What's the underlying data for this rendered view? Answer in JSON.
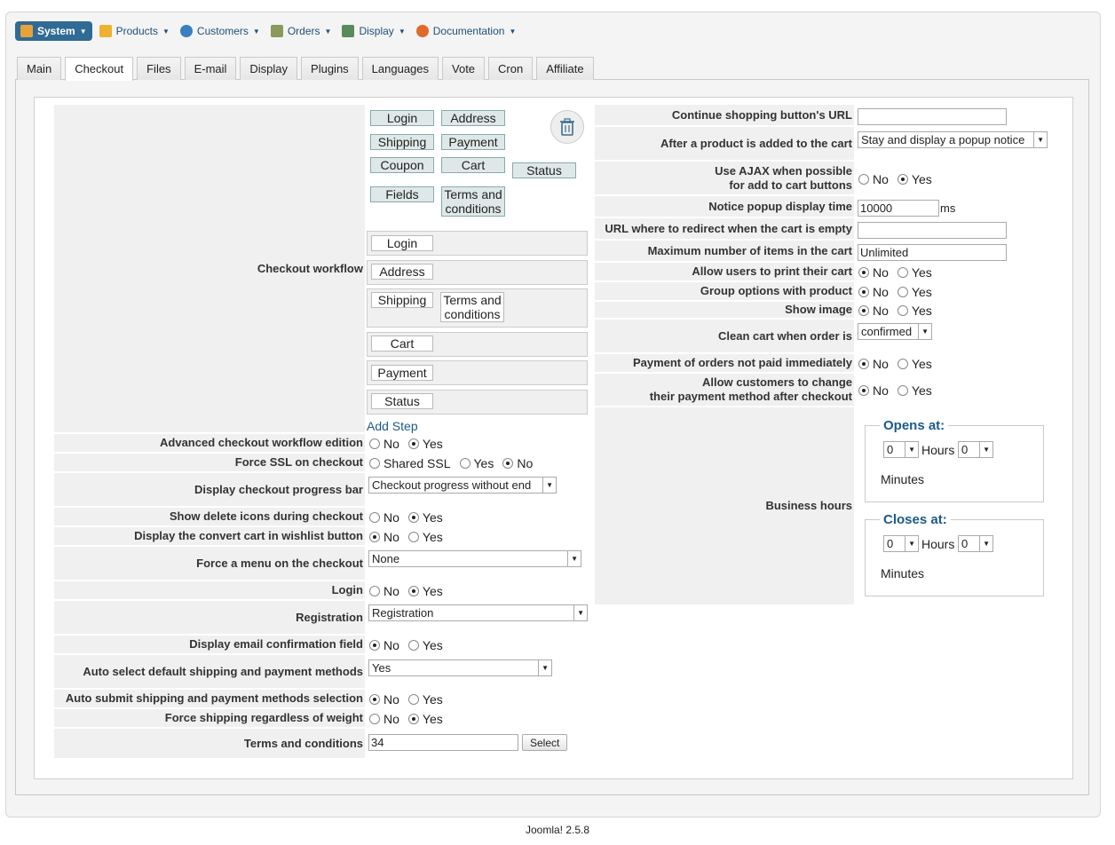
{
  "menubar": [
    {
      "label": "System",
      "icon": "wrench-icon",
      "color": "#e8a23a"
    },
    {
      "label": "Products",
      "icon": "products-icon",
      "color": "#f0b030"
    },
    {
      "label": "Customers",
      "icon": "customers-icon",
      "color": "#3a7fc0"
    },
    {
      "label": "Orders",
      "icon": "orders-icon",
      "color": "#8a9a5a"
    },
    {
      "label": "Display",
      "icon": "display-icon",
      "color": "#5a8a5a"
    },
    {
      "label": "Documentation",
      "icon": "lifebuoy-icon",
      "color": "#e06a2a"
    }
  ],
  "tabs": [
    "Main",
    "Checkout",
    "Files",
    "E-mail",
    "Display",
    "Plugins",
    "Languages",
    "Vote",
    "Cron",
    "Affiliate"
  ],
  "active_tab": "Checkout",
  "workflow": {
    "label": "Checkout workflow",
    "palette": [
      "Login",
      "Address",
      "Shipping",
      "Payment",
      "Coupon",
      "Cart",
      "Status",
      "Fields",
      "Terms and conditions"
    ],
    "steps": [
      [
        "Login"
      ],
      [
        "Address"
      ],
      [
        "Shipping",
        "Terms and conditions"
      ],
      [
        "Cart"
      ],
      [
        "Payment"
      ],
      [
        "Status"
      ]
    ],
    "add_step": "Add Step"
  },
  "left": {
    "advanced": {
      "label": "Advanced checkout workflow edition",
      "no": "No",
      "yes": "Yes"
    },
    "ssl": {
      "label": "Force SSL on checkout",
      "shared": "Shared SSL",
      "yes": "Yes",
      "no": "No"
    },
    "progress": {
      "label": "Display checkout progress bar",
      "value": "Checkout progress without end"
    },
    "delete_icons": {
      "label": "Show delete icons during checkout",
      "no": "No",
      "yes": "Yes"
    },
    "wishlist": {
      "label": "Display the convert cart in wishlist button",
      "no": "No",
      "yes": "Yes"
    },
    "menu": {
      "label": "Force a menu on the checkout",
      "value": "None"
    },
    "login": {
      "label": "Login",
      "no": "No",
      "yes": "Yes"
    },
    "registration": {
      "label": "Registration",
      "value": "Registration"
    },
    "email_confirm": {
      "label": "Display email confirmation field",
      "no": "No",
      "yes": "Yes"
    },
    "auto_select": {
      "label": "Auto select default shipping and payment methods",
      "value": "Yes"
    },
    "auto_submit": {
      "label": "Auto submit shipping and payment methods selection",
      "no": "No",
      "yes": "Yes"
    },
    "force_shipping": {
      "label": "Force shipping regardless of weight",
      "no": "No",
      "yes": "Yes"
    },
    "terms": {
      "label": "Terms and conditions",
      "value": "34",
      "button": "Select"
    }
  },
  "right": {
    "continue_url": {
      "label": "Continue shopping button's URL",
      "value": ""
    },
    "after_add": {
      "label": "After a product is added to the cart",
      "value": "Stay and display a popup notice"
    },
    "ajax": {
      "label1": "Use AJAX when possible",
      "label2": "for add to cart buttons",
      "no": "No",
      "yes": "Yes"
    },
    "popup_time": {
      "label": "Notice popup display time",
      "value": "10000",
      "unit": "ms"
    },
    "redirect_empty": {
      "label": "URL where to redirect when the cart is empty",
      "value": ""
    },
    "max_items": {
      "label": "Maximum number of items in the cart",
      "value": "Unlimited"
    },
    "print_cart": {
      "label": "Allow users to print their cart",
      "no": "No",
      "yes": "Yes"
    },
    "group_options": {
      "label": "Group options with product",
      "no": "No",
      "yes": "Yes"
    },
    "show_image": {
      "label": "Show image",
      "no": "No",
      "yes": "Yes"
    },
    "clean_cart": {
      "label": "Clean cart when order is",
      "value": "confirmed"
    },
    "payment_orders": {
      "label": "Payment of orders not paid immediately",
      "no": "No",
      "yes": "Yes"
    },
    "change_payment": {
      "label1": "Allow customers to change",
      "label2": "their payment method after checkout",
      "no": "No",
      "yes": "Yes"
    },
    "business_hours": {
      "label": "Business hours",
      "opens": {
        "legend": "Opens at:",
        "hours": "0",
        "hours_label": "Hours",
        "minutes": "0",
        "minutes_label": "Minutes"
      },
      "closes": {
        "legend": "Closes at:",
        "hours": "0",
        "hours_label": "Hours",
        "minutes": "0",
        "minutes_label": "Minutes"
      }
    }
  },
  "footer": "Joomla! 2.5.8"
}
